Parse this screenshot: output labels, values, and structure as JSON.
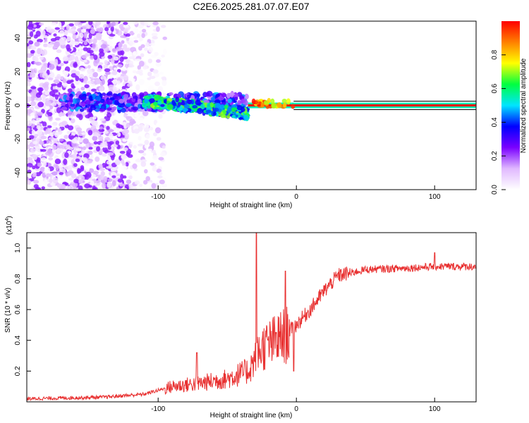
{
  "title": "C2E6.2025.281.07.07.E07",
  "chart_data": [
    {
      "type": "heatmap",
      "title": "C2E6.2025.281.07.07.E07",
      "xlabel": "Height of straight line (km)",
      "ylabel": "Frequency (Hz)",
      "xlim": [
        -195,
        130
      ],
      "ylim": [
        -50,
        50
      ],
      "x_ticks": [
        -100,
        0,
        100
      ],
      "y_ticks": [
        -40,
        -20,
        0,
        20,
        40
      ],
      "colorbar": {
        "label": "Normalized spectral amplitude",
        "range": [
          0,
          1
        ],
        "ticks": [
          0.0,
          0.2,
          0.4,
          0.6,
          0.8
        ],
        "colormap": [
          "#ffffff",
          "#e0b8ff",
          "#7a00ff",
          "#0000ff",
          "#00e5ff",
          "#00ff40",
          "#ffff00",
          "#ff8000",
          "#ff0000"
        ]
      },
      "regions": [
        {
          "name": "noise",
          "x_range": [
            -195,
            -120
          ],
          "freq_range": [
            -50,
            50
          ],
          "level": 0.15
        },
        {
          "name": "sparse",
          "x_range": [
            -120,
            -95
          ],
          "freq_range": [
            -50,
            50
          ],
          "level": 0.05
        },
        {
          "name": "signal_band",
          "x_range": [
            -170,
            -35
          ],
          "freq_center": 2,
          "level": 0.35
        },
        {
          "name": "drift",
          "x_range": [
            -110,
            -35
          ],
          "freq_start": 3,
          "freq_end": -5,
          "level": 0.55
        },
        {
          "name": "locked_carrier",
          "x_range": [
            -35,
            130
          ],
          "freq": 0,
          "level": 1.0
        }
      ]
    },
    {
      "type": "line",
      "xlabel": "Height of straight line (km)",
      "ylabel": "SNR (10 * v/v)",
      "y_scale_label": "(x10",
      "y_scale_exp": "4",
      "xlim": [
        -195,
        130
      ],
      "ylim": [
        0,
        1.1
      ],
      "x_ticks": [
        -100,
        0,
        100
      ],
      "y_ticks": [
        0.2,
        0.4,
        0.6,
        0.8,
        1.0
      ],
      "color": "#e83030",
      "trend_points": [
        {
          "x": -195,
          "y": 0.02
        },
        {
          "x": -140,
          "y": 0.03
        },
        {
          "x": -110,
          "y": 0.05
        },
        {
          "x": -90,
          "y": 0.1
        },
        {
          "x": -70,
          "y": 0.12
        },
        {
          "x": -50,
          "y": 0.15
        },
        {
          "x": -35,
          "y": 0.2
        },
        {
          "x": -25,
          "y": 0.35
        },
        {
          "x": -10,
          "y": 0.42
        },
        {
          "x": 0,
          "y": 0.5
        },
        {
          "x": 10,
          "y": 0.6
        },
        {
          "x": 20,
          "y": 0.72
        },
        {
          "x": 30,
          "y": 0.82
        },
        {
          "x": 50,
          "y": 0.86
        },
        {
          "x": 80,
          "y": 0.87
        },
        {
          "x": 100,
          "y": 0.88
        },
        {
          "x": 130,
          "y": 0.88
        }
      ],
      "spikes": [
        {
          "x": -72,
          "y": 0.32
        },
        {
          "x": -29,
          "y": 1.1
        },
        {
          "x": -8,
          "y": 0.85
        },
        {
          "x": -2,
          "y": 0.2
        },
        {
          "x": 100,
          "y": 0.97
        }
      ]
    }
  ]
}
